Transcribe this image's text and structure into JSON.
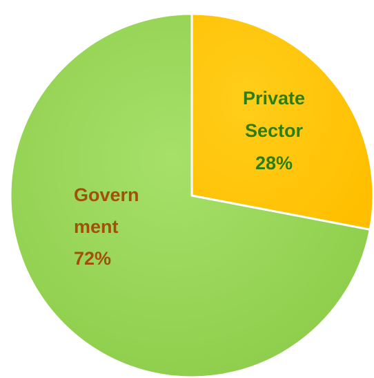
{
  "chart_data": {
    "type": "pie",
    "title": "",
    "slices": [
      {
        "label_lines": [
          "Private",
          "Sector",
          "28%"
        ],
        "value": 28,
        "color": "#ffc000",
        "label_color": "#2e7d12"
      },
      {
        "label_lines": [
          "Govern",
          "ment",
          "72%"
        ],
        "value": 72,
        "color": "#92d050",
        "label_color": "#a0500a"
      }
    ],
    "start_angle": "12 o'clock, clockwise",
    "legend": "none"
  }
}
